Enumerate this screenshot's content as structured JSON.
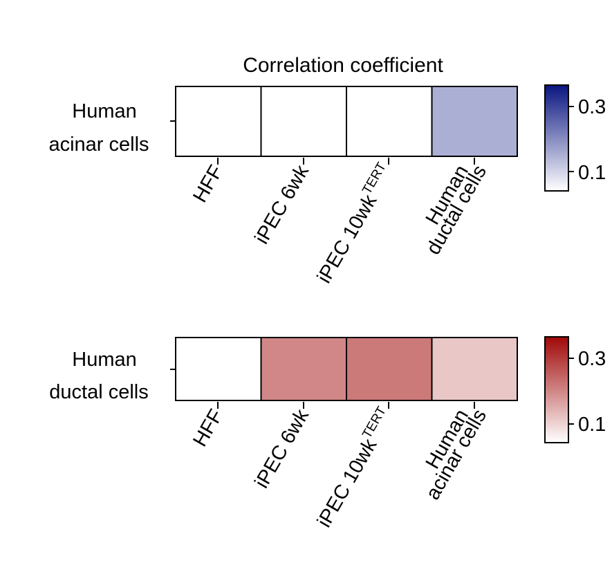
{
  "chart_data": [
    {
      "type": "heatmap",
      "title": "Correlation coefficient",
      "row_labels": [
        "Human",
        "acinar cells"
      ],
      "categories": [
        {
          "main": "HFF",
          "sup": ""
        },
        {
          "main": "iPEC 6wk",
          "sup": ""
        },
        {
          "main": "iPEC 10wk",
          "sup": "TERT"
        },
        {
          "main": "Human",
          "line2": "ductal cells"
        }
      ],
      "values": [
        0.0,
        0.0,
        0.0,
        0.12
      ],
      "colorscale": {
        "low": "#ffffff",
        "high": "#0a1580",
        "vmin": 0,
        "vmax": 0.35,
        "ticks": [
          "0.3",
          "0.1"
        ],
        "tick_values": [
          0.3,
          0.1
        ]
      }
    },
    {
      "type": "heatmap",
      "title": "",
      "row_labels": [
        "Human",
        "ductal cells"
      ],
      "categories": [
        {
          "main": "HFF",
          "sup": ""
        },
        {
          "main": "iPEC 6wk",
          "sup": ""
        },
        {
          "main": "iPEC 10wk",
          "sup": "TERT"
        },
        {
          "main": "Human",
          "line2": "acinar cells"
        }
      ],
      "values": [
        0.0,
        0.17,
        0.19,
        0.08
      ],
      "colorscale": {
        "low": "#ffffff",
        "high": "#a00808",
        "vmin": 0,
        "vmax": 0.35,
        "ticks": [
          "0.3",
          "0.1"
        ],
        "tick_values": [
          0.3,
          0.1
        ]
      }
    }
  ]
}
